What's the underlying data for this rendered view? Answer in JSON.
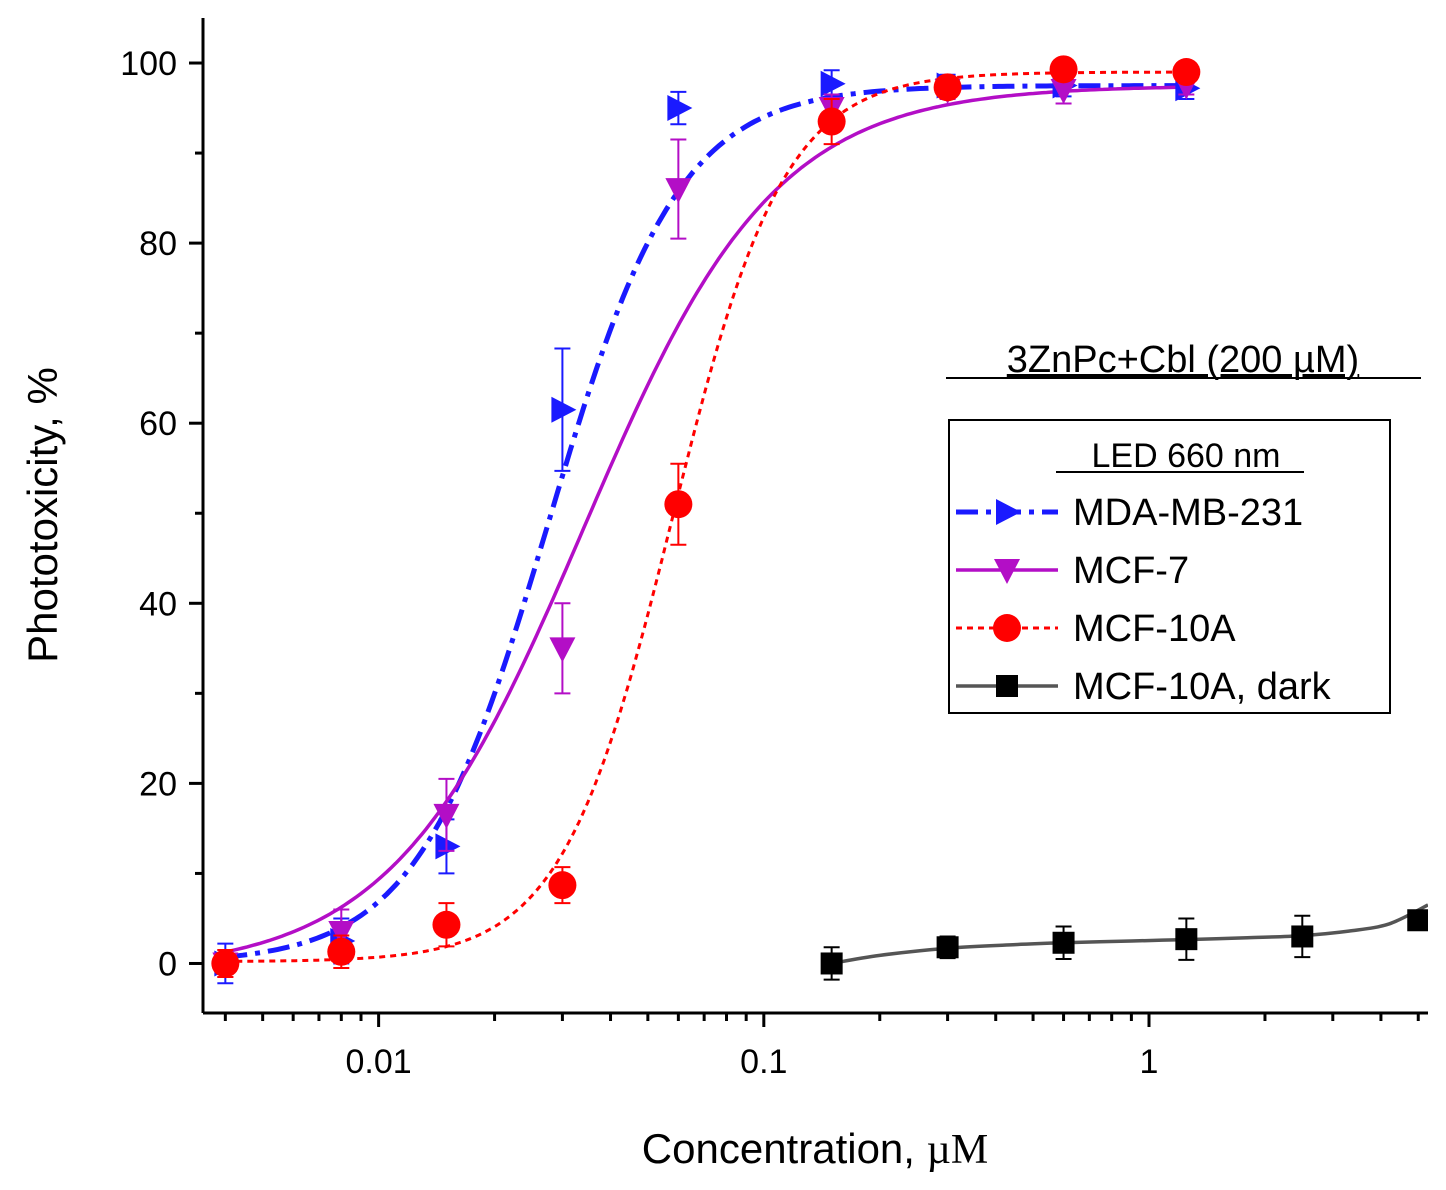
{
  "chart_data": {
    "type": "scatter",
    "title": "3ZnPc+Cbl (200 µM)",
    "xlabel_text": "Concentration, ",
    "xlabel_unit": "µM",
    "ylabel": "Phototoxicity, %",
    "x_scale": "log",
    "xlim": [
      0.0035,
      5.3
    ],
    "ylim": [
      -5.5,
      105
    ],
    "x_ticks": [
      0.01,
      0.1,
      1
    ],
    "x_tick_labels": [
      "0.01",
      "0.1",
      "1"
    ],
    "y_ticks": [
      0,
      20,
      40,
      60,
      80,
      100
    ],
    "y_tick_labels": [
      "0",
      "20",
      "40",
      "60",
      "80",
      "100"
    ],
    "legend_title": "LED 660 nm",
    "legend_position": "right",
    "series": [
      {
        "name": "MDA-MB-231",
        "color": "#1a1aff",
        "marker": "triangle-right",
        "line_style": "dash-dot",
        "x": [
          0.004,
          0.008,
          0.015,
          0.03,
          0.06,
          0.15,
          0.3,
          0.6,
          1.25
        ],
        "y": [
          0,
          2.5,
          13,
          61.5,
          95,
          97.7,
          97.5,
          97.5,
          97.2
        ],
        "err": [
          2.2,
          2.5,
          3,
          6.8,
          1.8,
          1.5,
          1.2,
          1.2,
          1.2
        ],
        "fit": {
          "bottom": 0,
          "top": 97.5,
          "ec50": 0.0275,
          "hill": 2.55
        }
      },
      {
        "name": "MCF-7",
        "color": "#b30ec6",
        "marker": "triangle-down",
        "line_style": "solid",
        "x": [
          0.004,
          0.008,
          0.015,
          0.03,
          0.06,
          0.15,
          0.3,
          0.6,
          1.25
        ],
        "y": [
          0,
          3.5,
          16.5,
          35,
          86,
          95,
          97,
          97,
          97.5
        ],
        "err": [
          1.5,
          2.5,
          4,
          5,
          5.5,
          1.5,
          1,
          1.5,
          1
        ],
        "fit": {
          "bottom": -1,
          "top": 97.5,
          "ec50": 0.034,
          "hill": 1.75
        }
      },
      {
        "name": "MCF-10A",
        "color": "#ff0000",
        "marker": "circle",
        "line_style": "dotted",
        "x": [
          0.004,
          0.008,
          0.015,
          0.03,
          0.06,
          0.15,
          0.3,
          0.6,
          1.25
        ],
        "y": [
          0,
          1.3,
          4.3,
          8.7,
          51,
          93.5,
          97.3,
          99.3,
          99
        ],
        "err": [
          1.5,
          1.8,
          2.4,
          2,
          4.5,
          2.5,
          1,
          0.8,
          0.8
        ],
        "fit": {
          "bottom": 0.2,
          "top": 99,
          "ec50": 0.058,
          "hill": 3.0
        }
      },
      {
        "name": "MCF-10A, dark",
        "color": "#000000",
        "line_color": "#555555",
        "marker": "square",
        "line_style": "solid",
        "x": [
          0.15,
          0.3,
          0.6,
          1.25,
          2.5,
          5
        ],
        "y": [
          0,
          1.8,
          2.3,
          2.7,
          3,
          4.8
        ],
        "err": [
          1.8,
          1.2,
          1.8,
          2.3,
          2.3,
          1.0
        ],
        "curve": [
          [
            0.15,
            0
          ],
          [
            0.2,
            0.9
          ],
          [
            0.3,
            1.7
          ],
          [
            0.45,
            2.1
          ],
          [
            0.6,
            2.3
          ],
          [
            0.9,
            2.5
          ],
          [
            1.25,
            2.65
          ],
          [
            1.8,
            2.85
          ],
          [
            2.5,
            3.1
          ],
          [
            3.3,
            3.6
          ],
          [
            4.2,
            4.4
          ],
          [
            5.3,
            6.5
          ]
        ]
      }
    ]
  }
}
